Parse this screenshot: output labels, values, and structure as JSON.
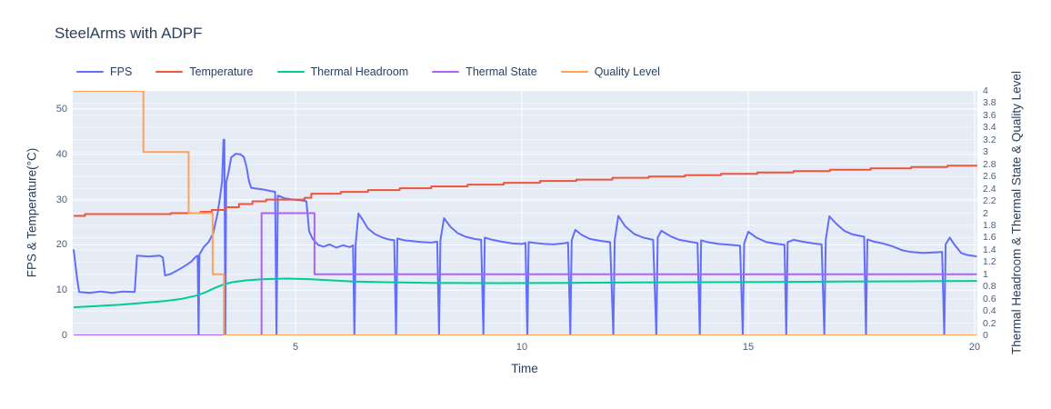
{
  "title": "SteelArms with ADPF",
  "legend": [
    {
      "label": "FPS",
      "color": "#636efa"
    },
    {
      "label": "Temperature",
      "color": "#ef553b"
    },
    {
      "label": "Thermal Headroom",
      "color": "#00cc96"
    },
    {
      "label": "Thermal State",
      "color": "#ab63fa"
    },
    {
      "label": "Quality Level",
      "color": "#ffa15a"
    }
  ],
  "chart_data": {
    "type": "line",
    "title": "SteelArms with ADPF",
    "xlabel": "Time",
    "ylabel_left": "FPS & Temperature(°C)",
    "ylabel_right": "Thermal Headroom & Thermal State & Quality Level",
    "x_range": [
      0.08,
      20.06
    ],
    "y_left_range": [
      0,
      54
    ],
    "y_right_range": [
      0,
      4
    ],
    "x_ticks": [
      5,
      10,
      15,
      20
    ],
    "y_left_ticks": [
      0,
      10,
      20,
      30,
      40,
      50
    ],
    "y_right_ticks": [
      0,
      0.2,
      0.4,
      0.6,
      0.8,
      1,
      1.2,
      1.4,
      1.6,
      1.8,
      2,
      2.2,
      2.4,
      2.6,
      2.8,
      3,
      3.2,
      3.4,
      3.6,
      3.8,
      4
    ],
    "grid": true,
    "legend_position": "top",
    "plot_bg": "#e5ecf6",
    "grid_color": "#ffffff",
    "series": [
      {
        "name": "FPS",
        "axis": "left",
        "mode": "line",
        "color": "#636efa",
        "points": [
          [
            0.1,
            19
          ],
          [
            0.17,
            13
          ],
          [
            0.22,
            9.6
          ],
          [
            0.45,
            9.4
          ],
          [
            0.7,
            9.7
          ],
          [
            0.95,
            9.4
          ],
          [
            1.2,
            9.7
          ],
          [
            1.45,
            9.6
          ],
          [
            1.5,
            17.6
          ],
          [
            1.75,
            17.4
          ],
          [
            2.0,
            17.6
          ],
          [
            2.07,
            17.2
          ],
          [
            2.12,
            13.2
          ],
          [
            2.25,
            13.6
          ],
          [
            2.4,
            14.4
          ],
          [
            2.55,
            15.3
          ],
          [
            2.7,
            16.3
          ],
          [
            2.8,
            17.4
          ],
          [
            2.84,
            17.6
          ],
          [
            2.86,
            0
          ],
          [
            2.88,
            17.9
          ],
          [
            2.98,
            19.6
          ],
          [
            3.08,
            20.6
          ],
          [
            3.18,
            22.5
          ],
          [
            3.28,
            27
          ],
          [
            3.34,
            31
          ],
          [
            3.38,
            34
          ],
          [
            3.41,
            43.2
          ],
          [
            3.43,
            43.2
          ],
          [
            3.45,
            0
          ],
          [
            3.47,
            33.8
          ],
          [
            3.52,
            36
          ],
          [
            3.58,
            39.3
          ],
          [
            3.68,
            40.1
          ],
          [
            3.78,
            40
          ],
          [
            3.86,
            39.4
          ],
          [
            3.92,
            37.2
          ],
          [
            3.97,
            34.2
          ],
          [
            4.02,
            32.6
          ],
          [
            4.15,
            32.4
          ],
          [
            4.3,
            32.2
          ],
          [
            4.45,
            31.9
          ],
          [
            4.55,
            31.7
          ],
          [
            4.58,
            0
          ],
          [
            4.61,
            30.9
          ],
          [
            4.75,
            30.3
          ],
          [
            4.95,
            30
          ],
          [
            5.15,
            29.8
          ],
          [
            5.24,
            29.6
          ],
          [
            5.3,
            23
          ],
          [
            5.38,
            21.3
          ],
          [
            5.5,
            20
          ],
          [
            5.62,
            19.6
          ],
          [
            5.75,
            20.1
          ],
          [
            5.9,
            19.4
          ],
          [
            6.05,
            19.9
          ],
          [
            6.2,
            19.5
          ],
          [
            6.27,
            19.9
          ],
          [
            6.3,
            0
          ],
          [
            6.33,
            20.2
          ],
          [
            6.39,
            26.9
          ],
          [
            6.48,
            25.6
          ],
          [
            6.6,
            23.6
          ],
          [
            6.75,
            22.4
          ],
          [
            6.9,
            21.7
          ],
          [
            7.05,
            21.2
          ],
          [
            7.18,
            21
          ],
          [
            7.22,
            0
          ],
          [
            7.25,
            21.4
          ],
          [
            7.4,
            21
          ],
          [
            7.6,
            20.8
          ],
          [
            7.8,
            20.6
          ],
          [
            8.0,
            20.5
          ],
          [
            8.13,
            20.7
          ],
          [
            8.17,
            0
          ],
          [
            8.2,
            21
          ],
          [
            8.28,
            25.9
          ],
          [
            8.42,
            24
          ],
          [
            8.58,
            22.6
          ],
          [
            8.75,
            21.8
          ],
          [
            8.95,
            21.3
          ],
          [
            9.1,
            21.1
          ],
          [
            9.15,
            0
          ],
          [
            9.18,
            21.6
          ],
          [
            9.35,
            21.1
          ],
          [
            9.55,
            20.7
          ],
          [
            9.8,
            20.3
          ],
          [
            10.0,
            20.2
          ],
          [
            10.08,
            20.4
          ],
          [
            10.12,
            0
          ],
          [
            10.15,
            20.6
          ],
          [
            10.3,
            20.4
          ],
          [
            10.5,
            20.2
          ],
          [
            10.7,
            20.1
          ],
          [
            10.9,
            20.3
          ],
          [
            11.02,
            20.5
          ],
          [
            11.07,
            0
          ],
          [
            11.1,
            21
          ],
          [
            11.18,
            23.3
          ],
          [
            11.32,
            22.2
          ],
          [
            11.5,
            21.3
          ],
          [
            11.72,
            20.9
          ],
          [
            11.95,
            20.6
          ],
          [
            12.02,
            0
          ],
          [
            12.05,
            21
          ],
          [
            12.13,
            26.4
          ],
          [
            12.28,
            24.1
          ],
          [
            12.48,
            22.4
          ],
          [
            12.68,
            21.6
          ],
          [
            12.9,
            21.1
          ],
          [
            12.97,
            0
          ],
          [
            13.0,
            21.6
          ],
          [
            13.08,
            23.1
          ],
          [
            13.28,
            21.9
          ],
          [
            13.48,
            21.1
          ],
          [
            13.7,
            20.7
          ],
          [
            13.88,
            20.4
          ],
          [
            13.93,
            0
          ],
          [
            13.96,
            21
          ],
          [
            14.1,
            20.6
          ],
          [
            14.35,
            20.2
          ],
          [
            14.6,
            20
          ],
          [
            14.82,
            19.8
          ],
          [
            14.88,
            0
          ],
          [
            14.91,
            20.3
          ],
          [
            15.0,
            22.9
          ],
          [
            15.18,
            21.6
          ],
          [
            15.4,
            20.6
          ],
          [
            15.65,
            20.2
          ],
          [
            15.8,
            20
          ],
          [
            15.84,
            0
          ],
          [
            15.87,
            20.6
          ],
          [
            16.0,
            21.1
          ],
          [
            16.2,
            20.7
          ],
          [
            16.45,
            20.3
          ],
          [
            16.62,
            20.1
          ],
          [
            16.68,
            0
          ],
          [
            16.71,
            21
          ],
          [
            16.79,
            26.3
          ],
          [
            16.95,
            24.6
          ],
          [
            17.12,
            23.1
          ],
          [
            17.3,
            22.3
          ],
          [
            17.5,
            21.9
          ],
          [
            17.56,
            21.8
          ],
          [
            17.6,
            0
          ],
          [
            17.63,
            21.2
          ],
          [
            17.78,
            20.7
          ],
          [
            17.98,
            20.3
          ],
          [
            18.18,
            19.7
          ],
          [
            18.4,
            18.8
          ],
          [
            18.6,
            18.4
          ],
          [
            18.85,
            18.2
          ],
          [
            19.1,
            18.3
          ],
          [
            19.28,
            18.4
          ],
          [
            19.33,
            0
          ],
          [
            19.36,
            20.1
          ],
          [
            19.45,
            21.6
          ],
          [
            19.55,
            20.1
          ],
          [
            19.7,
            18.2
          ],
          [
            19.85,
            17.7
          ],
          [
            20.0,
            17.5
          ],
          [
            20.05,
            17.4
          ]
        ]
      },
      {
        "name": "Temperature",
        "axis": "left",
        "mode": "step",
        "color": "#ef553b",
        "points": [
          [
            0.1,
            26.4
          ],
          [
            0.35,
            26.8
          ],
          [
            2.25,
            27
          ],
          [
            2.9,
            27.3
          ],
          [
            3.15,
            27.7
          ],
          [
            3.45,
            28.3
          ],
          [
            3.75,
            29
          ],
          [
            4.05,
            29.6
          ],
          [
            4.35,
            30
          ],
          [
            5.2,
            30.4
          ],
          [
            5.35,
            31.3
          ],
          [
            6.0,
            31.7
          ],
          [
            6.6,
            32.1
          ],
          [
            7.3,
            32.5
          ],
          [
            8.0,
            32.9
          ],
          [
            8.8,
            33.3
          ],
          [
            9.6,
            33.7
          ],
          [
            10.4,
            34.1
          ],
          [
            11.2,
            34.4
          ],
          [
            12.0,
            34.8
          ],
          [
            12.8,
            35.1
          ],
          [
            13.6,
            35.4
          ],
          [
            14.4,
            35.7
          ],
          [
            15.2,
            36
          ],
          [
            16.0,
            36.3
          ],
          [
            16.8,
            36.6
          ],
          [
            17.7,
            36.9
          ],
          [
            18.6,
            37.2
          ],
          [
            19.4,
            37.5
          ],
          [
            20.05,
            37.6
          ]
        ]
      },
      {
        "name": "Thermal Headroom",
        "axis": "right",
        "mode": "line",
        "color": "#00cc96",
        "points": [
          [
            0.1,
            0.46
          ],
          [
            0.6,
            0.48
          ],
          [
            1.1,
            0.5
          ],
          [
            1.6,
            0.53
          ],
          [
            2.1,
            0.56
          ],
          [
            2.5,
            0.6
          ],
          [
            2.8,
            0.65
          ],
          [
            3.0,
            0.7
          ],
          [
            3.2,
            0.77
          ],
          [
            3.4,
            0.83
          ],
          [
            3.6,
            0.87
          ],
          [
            3.9,
            0.9
          ],
          [
            4.3,
            0.92
          ],
          [
            4.8,
            0.93
          ],
          [
            5.3,
            0.92
          ],
          [
            5.8,
            0.9
          ],
          [
            6.3,
            0.88
          ],
          [
            7.0,
            0.87
          ],
          [
            8.0,
            0.86
          ],
          [
            9.5,
            0.855
          ],
          [
            11.0,
            0.86
          ],
          [
            12.5,
            0.865
          ],
          [
            14.0,
            0.87
          ],
          [
            15.5,
            0.875
          ],
          [
            17.0,
            0.88
          ],
          [
            18.5,
            0.885
          ],
          [
            20.05,
            0.89
          ]
        ]
      },
      {
        "name": "Thermal State",
        "axis": "right",
        "mode": "step",
        "color": "#ab63fa",
        "points": [
          [
            0.1,
            0
          ],
          [
            4.25,
            2
          ],
          [
            5.42,
            1
          ],
          [
            20.05,
            1
          ]
        ]
      },
      {
        "name": "Quality Level",
        "axis": "right",
        "mode": "step",
        "color": "#ffa15a",
        "points": [
          [
            0.1,
            4
          ],
          [
            1.64,
            3
          ],
          [
            2.64,
            2
          ],
          [
            3.17,
            1
          ],
          [
            3.42,
            0
          ],
          [
            20.05,
            0
          ]
        ]
      }
    ]
  }
}
